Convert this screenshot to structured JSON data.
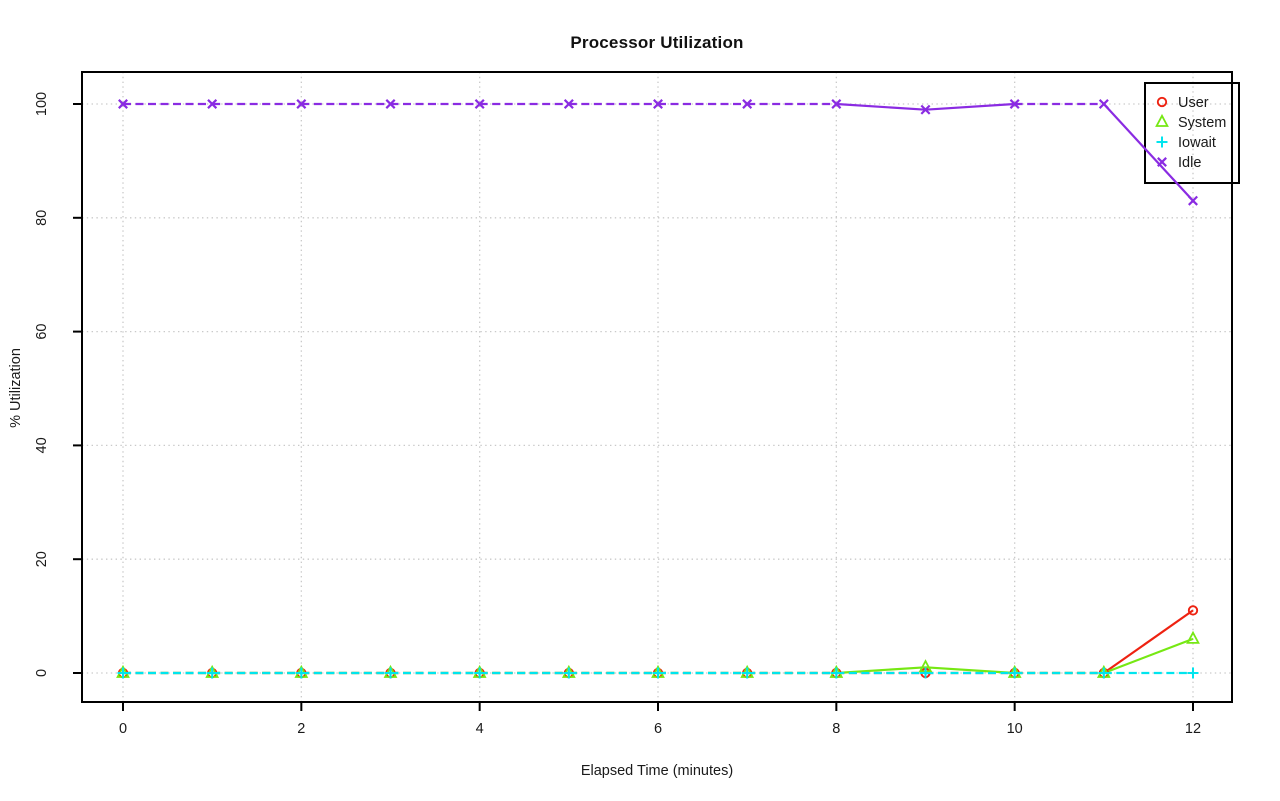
{
  "title": "Processor Utilization",
  "chart_data": {
    "type": "line",
    "title": "Processor Utilization",
    "xlabel": "Elapsed Time (minutes)",
    "ylabel": "% Utilization",
    "x": [
      0,
      1,
      2,
      3,
      4,
      5,
      6,
      7,
      8,
      9,
      10,
      11,
      12
    ],
    "xticks": [
      0,
      2,
      4,
      6,
      8,
      10,
      12
    ],
    "yticks": [
      0,
      20,
      40,
      60,
      80,
      100
    ],
    "xlim": [
      0,
      12
    ],
    "ylim": [
      0,
      100
    ],
    "grid": true,
    "grid_style": "dotted",
    "grid_color": "#c9c9c9",
    "legend_position": "top-right",
    "line_style_note": "flat segments at gridline values render dashed; sloped segments solid",
    "series": [
      {
        "name": "User",
        "color": "#ee2211",
        "marker": "circle",
        "values": [
          0,
          0,
          0,
          0,
          0,
          0,
          0,
          0,
          0,
          0,
          0,
          0,
          11
        ]
      },
      {
        "name": "System",
        "color": "#76e813",
        "marker": "triangle",
        "values": [
          0,
          0,
          0,
          0,
          0,
          0,
          0,
          0,
          0,
          1,
          0,
          0,
          6
        ]
      },
      {
        "name": "Iowait",
        "color": "#00e5ee",
        "marker": "plus",
        "values": [
          0,
          0,
          0,
          0,
          0,
          0,
          0,
          0,
          0,
          0,
          0,
          0,
          0
        ]
      },
      {
        "name": "Idle",
        "color": "#8a2be2",
        "marker": "x",
        "values": [
          100,
          100,
          100,
          100,
          100,
          100,
          100,
          100,
          100,
          99,
          100,
          100,
          83
        ]
      }
    ]
  }
}
